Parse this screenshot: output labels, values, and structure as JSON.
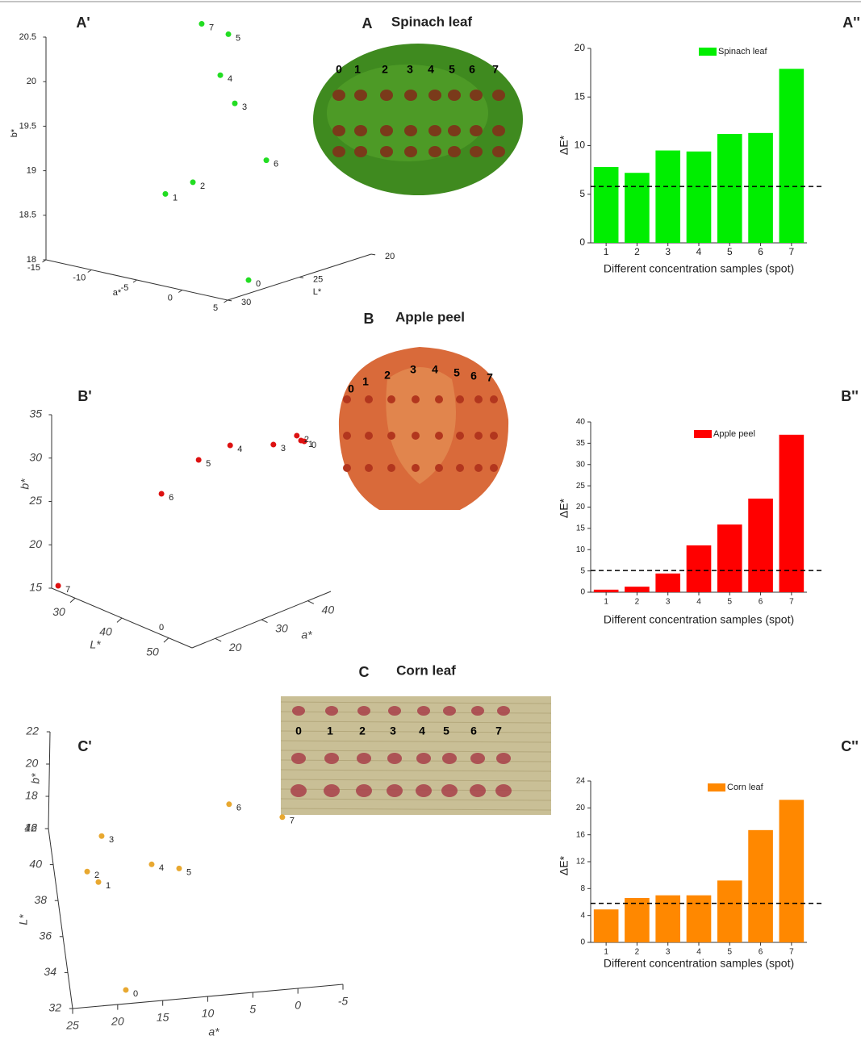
{
  "photos": [
    {
      "panel": "A",
      "title": "Spinach leaf",
      "labels": [
        "0",
        "1",
        "2",
        "3",
        "4",
        "5",
        "6",
        "7"
      ]
    },
    {
      "panel": "B",
      "title": "Apple peel",
      "labels": [
        "0",
        "1",
        "2",
        "3",
        "4",
        "5",
        "6",
        "7"
      ]
    },
    {
      "panel": "C",
      "title": "Corn leaf",
      "labels": [
        "0",
        "1",
        "2",
        "3",
        "4",
        "5",
        "6",
        "7"
      ]
    }
  ],
  "chart_data": [
    {
      "type": "scatter3d",
      "panel_label": "A'",
      "xlabel": "a*",
      "ylabel": "L*",
      "zlabel": "b*",
      "color": "#22dd22",
      "xlim": [
        -15,
        5
      ],
      "ylim": [
        20,
        30
      ],
      "zlim": [
        18,
        20.5
      ],
      "xticks": [
        -15,
        -10,
        -5,
        0,
        5
      ],
      "yticks": [
        20,
        25,
        30
      ],
      "zticks": [
        18,
        18.5,
        19,
        19.5,
        20,
        20.5
      ],
      "point_labels": [
        "0",
        "1",
        "2",
        "3",
        "4",
        "5",
        "6",
        "7"
      ],
      "x": [
        -0.6,
        -9.76,
        -6.73,
        -2.11,
        -3.71,
        -2.82,
        1.36,
        -5.76
      ],
      "y": [
        25,
        25,
        25,
        25,
        25,
        25,
        25,
        25
      ],
      "z": [
        17.84,
        18.6,
        18.8,
        19.79,
        20.07,
        20.55,
        19.23,
        20.6
      ]
    },
    {
      "type": "bar",
      "panel_label": "A''",
      "xlabel": "Different concentration samples (spot)",
      "ylabel": "ΔE*",
      "categories": [
        "1",
        "2",
        "3",
        "4",
        "5",
        "6",
        "7"
      ],
      "series": [
        {
          "name": "Spinach leaf",
          "color": "#00ee00",
          "values": [
            7.8,
            7.2,
            9.5,
            9.4,
            11.2,
            11.3,
            17.9
          ]
        }
      ],
      "threshold": 5.8,
      "ylim": [
        0,
        20
      ],
      "yticks": [
        0,
        5,
        10,
        15,
        20
      ]
    },
    {
      "type": "scatter3d",
      "panel_label": "B'",
      "xlabel": "a*",
      "ylabel": "L*",
      "zlabel": "b*",
      "color": "#dd1111",
      "xlim": [
        15,
        45
      ],
      "ylim": [
        25,
        55
      ],
      "zlim": [
        15,
        35
      ],
      "xticks": [
        20,
        30,
        40
      ],
      "yticks": [
        30,
        40,
        50
      ],
      "zticks": [
        15,
        20,
        25,
        30,
        35
      ],
      "annotations": [
        "0"
      ],
      "point_labels": [
        "0",
        "1",
        "2",
        "3",
        "4",
        "5",
        "6",
        "7"
      ],
      "x": [
        43.3,
        42.6,
        42.7,
        42.7,
        37.4,
        31.6,
        26.6,
        15.4
      ],
      "y": [
        51,
        51,
        50,
        45,
        41,
        40,
        37,
        26
      ],
      "z": [
        31.75,
        32.0,
        32.31,
        30.13,
        30.27,
        29.63,
        26.12,
        15.42
      ]
    },
    {
      "type": "bar",
      "panel_label": "B''",
      "xlabel": "Different concentration samples (spot)",
      "ylabel": "ΔE*",
      "categories": [
        "1",
        "2",
        "3",
        "4",
        "5",
        "6",
        "7"
      ],
      "series": [
        {
          "name": "Apple peel",
          "color": "#ff0000",
          "values": [
            0.6,
            1.3,
            4.4,
            11.0,
            15.9,
            22.0,
            37.0
          ]
        }
      ],
      "threshold": 5.1,
      "ylim": [
        0,
        40
      ],
      "yticks": [
        0,
        5,
        10,
        15,
        20,
        25,
        30,
        35,
        40
      ]
    },
    {
      "type": "scatter3d",
      "panel_label": "C'",
      "xlabel": "a*",
      "ylabel": "L*",
      "zlabel": "b*",
      "color": "#e8a830",
      "xlim": [
        -5,
        25
      ],
      "ylim": [
        32,
        42
      ],
      "zlim": [
        16,
        22
      ],
      "xticks": [
        -5,
        0,
        5,
        10,
        15,
        20,
        25
      ],
      "yticks": [
        32,
        34,
        36,
        38,
        40,
        42
      ],
      "zticks": [
        16,
        18,
        20,
        22
      ],
      "point_labels": [
        "0",
        "1",
        "2",
        "3",
        "4",
        "5",
        "6",
        "7"
      ],
      "x": [
        18.89,
        20.84,
        21.92,
        19.81,
        14.74,
        11.79,
        5.9,
        0.25
      ],
      "y": [
        32.76,
        37.05,
        37.68,
        39.56,
        37.76,
        37.4,
        38.91,
        37.94
      ],
      "z": [
        16,
        18,
        18,
        18,
        18,
        18,
        20,
        20
      ]
    },
    {
      "type": "bar",
      "panel_label": "C''",
      "xlabel": "Different concentration samples (spot)",
      "ylabel": "ΔE*",
      "categories": [
        "1",
        "2",
        "3",
        "4",
        "5",
        "6",
        "7"
      ],
      "series": [
        {
          "name": "Corn leaf",
          "color": "#ff8800",
          "values": [
            4.9,
            6.6,
            7.0,
            7.0,
            9.2,
            16.7,
            21.2
          ]
        }
      ],
      "threshold": 5.8,
      "ylim": [
        0,
        24
      ],
      "yticks": [
        0,
        4,
        8,
        12,
        16,
        20,
        24
      ]
    }
  ]
}
